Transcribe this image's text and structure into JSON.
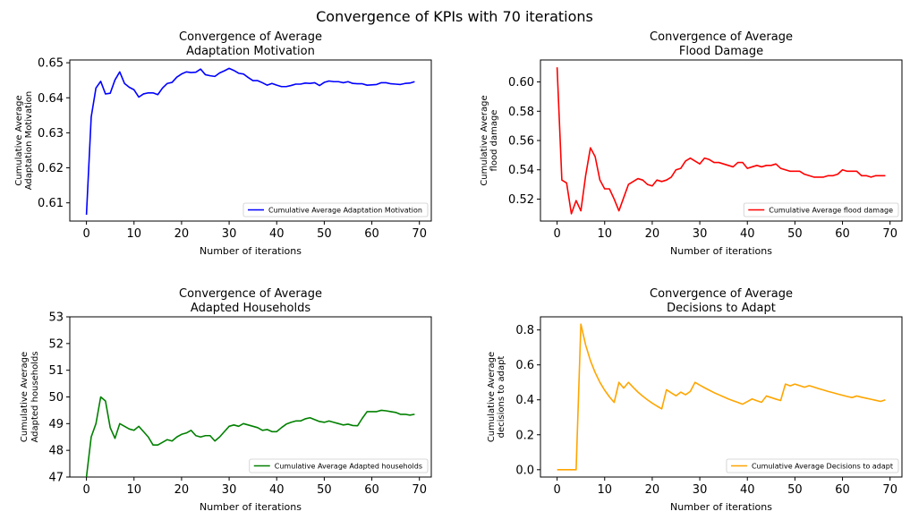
{
  "suptitle": "Convergence of KPIs with 70 iterations",
  "chart_data": [
    {
      "type": "line",
      "title": "Convergence of Average\nAdaptation Motivation",
      "xlabel": "Number of iterations",
      "ylabel": "Cumulative Average\nAdaptation Motivation",
      "xlim": [
        -3.5,
        72.5
      ],
      "ylim": [
        0.6048,
        0.6508
      ],
      "xticks": [
        0,
        10,
        20,
        30,
        40,
        50,
        60,
        70
      ],
      "yticks": [
        0.61,
        0.62,
        0.63,
        0.64,
        0.65
      ],
      "ytick_decimals": 2,
      "legend_loc": "lower-right",
      "series": [
        {
          "name": "Cumulative Average Adaptation Motivation",
          "color": "#0000ff",
          "x": [
            0,
            1,
            2,
            3,
            4,
            5,
            6,
            7,
            8,
            9,
            10,
            11,
            12,
            13,
            14,
            15,
            16,
            17,
            18,
            19,
            20,
            21,
            22,
            23,
            24,
            25,
            26,
            27,
            28,
            29,
            30,
            31,
            32,
            33,
            34,
            35,
            36,
            37,
            38,
            39,
            40,
            41,
            42,
            43,
            44,
            45,
            46,
            47,
            48,
            49,
            50,
            51,
            52,
            53,
            54,
            55,
            56,
            57,
            58,
            59,
            60,
            61,
            62,
            63,
            64,
            65,
            66,
            67,
            68,
            69
          ],
          "values": [
            0.6066,
            0.6345,
            0.6428,
            0.6447,
            0.6411,
            0.6413,
            0.6451,
            0.6474,
            0.6441,
            0.643,
            0.6423,
            0.6402,
            0.6411,
            0.6414,
            0.6414,
            0.6409,
            0.6428,
            0.6441,
            0.6444,
            0.6459,
            0.6468,
            0.6474,
            0.6472,
            0.6473,
            0.6482,
            0.6466,
            0.6463,
            0.6461,
            0.6471,
            0.6477,
            0.6484,
            0.6478,
            0.647,
            0.6468,
            0.6458,
            0.6449,
            0.6449,
            0.6443,
            0.6436,
            0.6441,
            0.6436,
            0.6432,
            0.6432,
            0.6435,
            0.6439,
            0.6439,
            0.6442,
            0.6441,
            0.6443,
            0.6435,
            0.6444,
            0.6448,
            0.6446,
            0.6446,
            0.6443,
            0.6446,
            0.6441,
            0.644,
            0.644,
            0.6436,
            0.6437,
            0.6438,
            0.6443,
            0.6443,
            0.644,
            0.6439,
            0.6438,
            0.6441,
            0.6442,
            0.6446
          ]
        }
      ]
    },
    {
      "type": "line",
      "title": "Convergence of Average\nFlood Damage",
      "xlabel": "Number of iterations",
      "ylabel": "Cumulative Average\nflood damage",
      "xlim": [
        -3.5,
        72.5
      ],
      "ylim": [
        0.505,
        0.615
      ],
      "xticks": [
        0,
        10,
        20,
        30,
        40,
        50,
        60,
        70
      ],
      "yticks": [
        0.52,
        0.54,
        0.56,
        0.58,
        0.6
      ],
      "ytick_decimals": 2,
      "legend_loc": "lower-right",
      "series": [
        {
          "name": "Cumulative Average flood damage",
          "color": "#ff0000",
          "x": [
            0,
            1,
            2,
            3,
            4,
            5,
            6,
            7,
            8,
            9,
            10,
            11,
            12,
            13,
            14,
            15,
            16,
            17,
            18,
            19,
            20,
            21,
            22,
            23,
            24,
            25,
            26,
            27,
            28,
            29,
            30,
            31,
            32,
            33,
            34,
            35,
            36,
            37,
            38,
            39,
            40,
            41,
            42,
            43,
            44,
            45,
            46,
            47,
            48,
            49,
            50,
            51,
            52,
            53,
            54,
            55,
            56,
            57,
            58,
            59,
            60,
            61,
            62,
            63,
            64,
            65,
            66,
            67,
            68,
            69
          ],
          "values": [
            0.61,
            0.533,
            0.531,
            0.51,
            0.519,
            0.512,
            0.536,
            0.555,
            0.549,
            0.533,
            0.527,
            0.527,
            0.52,
            0.512,
            0.521,
            0.53,
            0.532,
            0.534,
            0.533,
            0.53,
            0.529,
            0.533,
            0.532,
            0.533,
            0.535,
            0.54,
            0.541,
            0.546,
            0.548,
            0.546,
            0.544,
            0.548,
            0.547,
            0.545,
            0.545,
            0.544,
            0.543,
            0.542,
            0.545,
            0.545,
            0.541,
            0.542,
            0.543,
            0.542,
            0.543,
            0.543,
            0.544,
            0.541,
            0.54,
            0.539,
            0.539,
            0.539,
            0.537,
            0.536,
            0.535,
            0.535,
            0.535,
            0.536,
            0.536,
            0.537,
            0.54,
            0.539,
            0.539,
            0.539,
            0.536,
            0.536,
            0.535,
            0.536,
            0.536,
            0.536
          ]
        }
      ]
    },
    {
      "type": "line",
      "title": "Convergence of Average\nAdapted Households",
      "xlabel": "Number of iterations",
      "ylabel": "Cumulative Average\nAdapted households",
      "xlim": [
        -3.5,
        72.5
      ],
      "ylim": [
        47,
        53
      ],
      "xticks": [
        0,
        10,
        20,
        30,
        40,
        50,
        60,
        70
      ],
      "yticks": [
        47,
        48,
        49,
        50,
        51,
        52,
        53
      ],
      "ytick_decimals": 0,
      "legend_loc": "lower-right",
      "series": [
        {
          "name": "Cumulative Average Adapted households",
          "color": "#008000",
          "x": [
            0,
            1,
            2,
            3,
            4,
            5,
            6,
            7,
            8,
            9,
            10,
            11,
            12,
            13,
            14,
            15,
            16,
            17,
            18,
            19,
            20,
            21,
            22,
            23,
            24,
            25,
            26,
            27,
            28,
            29,
            30,
            31,
            32,
            33,
            34,
            35,
            36,
            37,
            38,
            39,
            40,
            41,
            42,
            43,
            44,
            45,
            46,
            47,
            48,
            49,
            50,
            51,
            52,
            53,
            54,
            55,
            56,
            57,
            58,
            59,
            60,
            61,
            62,
            63,
            64,
            65,
            66,
            67,
            68,
            69
          ],
          "values": [
            47.0,
            48.5,
            49.0,
            50.0,
            49.85,
            48.85,
            48.45,
            49.0,
            48.9,
            48.8,
            48.75,
            48.9,
            48.7,
            48.5,
            48.2,
            48.2,
            48.3,
            48.4,
            48.35,
            48.5,
            48.6,
            48.65,
            48.75,
            48.55,
            48.5,
            48.55,
            48.55,
            48.35,
            48.5,
            48.7,
            48.9,
            48.95,
            48.9,
            49.0,
            48.95,
            48.9,
            48.85,
            48.75,
            48.78,
            48.7,
            48.7,
            48.85,
            48.98,
            49.05,
            49.1,
            49.1,
            49.18,
            49.22,
            49.15,
            49.08,
            49.05,
            49.1,
            49.05,
            49.0,
            48.95,
            48.98,
            48.93,
            48.92,
            49.2,
            49.45,
            49.45,
            49.45,
            49.5,
            49.48,
            49.45,
            49.42,
            49.35,
            49.35,
            49.32,
            49.35
          ]
        }
      ]
    },
    {
      "type": "line",
      "title": "Convergence of Average\nDecisions to Adapt",
      "xlabel": "Number of iterations",
      "ylabel": "Cumulative Average\ndecisions to adapt",
      "xlim": [
        -3.5,
        72.5
      ],
      "ylim": [
        -0.042,
        0.875
      ],
      "xticks": [
        0,
        10,
        20,
        30,
        40,
        50,
        60,
        70
      ],
      "yticks": [
        0,
        0.2,
        0.4,
        0.6,
        0.8
      ],
      "ytick_decimals": 1,
      "legend_loc": "lower-right",
      "series": [
        {
          "name": "Cumulative Average Decisions to adapt",
          "color": "#ffa500",
          "x": [
            0,
            1,
            2,
            3,
            4,
            5,
            6,
            7,
            8,
            9,
            10,
            11,
            12,
            13,
            14,
            15,
            16,
            17,
            18,
            19,
            20,
            21,
            22,
            23,
            24,
            25,
            26,
            27,
            28,
            29,
            30,
            31,
            32,
            33,
            34,
            35,
            36,
            37,
            38,
            39,
            40,
            41,
            42,
            43,
            44,
            45,
            46,
            47,
            48,
            49,
            50,
            51,
            52,
            53,
            54,
            55,
            56,
            57,
            58,
            59,
            60,
            61,
            62,
            63,
            64,
            65,
            66,
            67,
            68,
            69
          ],
          "values": [
            0,
            0,
            0,
            0,
            0,
            0.833,
            0.714,
            0.625,
            0.556,
            0.5,
            0.455,
            0.417,
            0.385,
            0.5,
            0.467,
            0.5,
            0.471,
            0.444,
            0.421,
            0.4,
            0.381,
            0.364,
            0.348,
            0.458,
            0.44,
            0.423,
            0.444,
            0.429,
            0.448,
            0.5,
            0.484,
            0.469,
            0.455,
            0.441,
            0.429,
            0.417,
            0.405,
            0.395,
            0.385,
            0.375,
            0.39,
            0.405,
            0.395,
            0.386,
            0.422,
            0.413,
            0.404,
            0.396,
            0.49,
            0.48,
            0.49,
            0.481,
            0.472,
            0.481,
            0.473,
            0.464,
            0.456,
            0.448,
            0.441,
            0.433,
            0.426,
            0.419,
            0.413,
            0.422,
            0.415,
            0.409,
            0.403,
            0.397,
            0.391,
            0.4
          ]
        }
      ]
    }
  ]
}
